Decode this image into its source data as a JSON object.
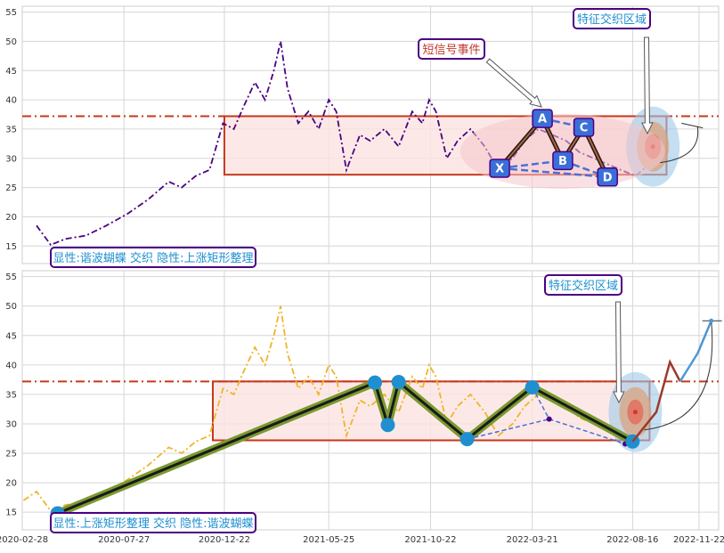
{
  "chart_data": [
    {
      "type": "line",
      "panel": "top",
      "ylim": [
        12,
        56
      ],
      "yticks": [
        15,
        20,
        25,
        30,
        35,
        40,
        45,
        50,
        55
      ],
      "grid": true,
      "series": [
        {
          "style": "dash-dot",
          "color": "#4b0082",
          "x": [
            "2020-03-20",
            "2020-04-10",
            "2020-05-01",
            "2020-06-01",
            "2020-07-01",
            "2020-08-01",
            "2020-09-01",
            "2020-10-01",
            "2020-10-20",
            "2020-11-10",
            "2020-11-30",
            "2020-12-20",
            "2021-01-05",
            "2021-01-20",
            "2021-02-05",
            "2021-02-20",
            "2021-03-05",
            "2021-03-15",
            "2021-03-25",
            "2021-04-10",
            "2021-04-25",
            "2021-05-10",
            "2021-05-25",
            "2021-06-05",
            "2021-06-20",
            "2021-07-10",
            "2021-07-25",
            "2021-08-15",
            "2021-09-05",
            "2021-09-25",
            "2021-10-10",
            "2021-10-20",
            "2021-10-30",
            "2021-11-15",
            "2021-12-01",
            "2021-12-20",
            "2022-01-10",
            "2022-01-30",
            "2022-02-20",
            "2022-03-10",
            "2022-03-30",
            "2022-04-20",
            "2022-05-10",
            "2022-05-30",
            "2022-06-20",
            "2022-07-10",
            "2022-07-30",
            "2022-08-20",
            "2022-09-05"
          ],
          "values": [
            18.5,
            15.2,
            16.2,
            16.8,
            18.5,
            20.5,
            23,
            26,
            25,
            27,
            28,
            36,
            35,
            39,
            43,
            40,
            45,
            50,
            42,
            36,
            38,
            35,
            40,
            38,
            28,
            34,
            33,
            35,
            32,
            38,
            36,
            40,
            38,
            30,
            33,
            35,
            32,
            28,
            30,
            33,
            35,
            34,
            33,
            31,
            30,
            29,
            28,
            27,
            28.5
          ]
        }
      ],
      "reference_lines": [
        {
          "y": 37.2,
          "color": "#c8371a",
          "style": "dash-dot"
        }
      ],
      "rectangles": [
        {
          "x0": "2020-12-22",
          "x1": "2022-10-05",
          "y0": 27.2,
          "y1": 37.2,
          "label": ""
        }
      ],
      "pattern_points": [
        {
          "label": "X",
          "x": "2022-02-01",
          "y": 28.3
        },
        {
          "label": "A",
          "x": "2022-04-05",
          "y": 36.8
        },
        {
          "label": "B",
          "x": "2022-05-05",
          "y": 29.6
        },
        {
          "label": "C",
          "x": "2022-06-05",
          "y": 35.3
        },
        {
          "label": "D",
          "x": "2022-07-10",
          "y": 26.8
        }
      ],
      "annotations": [
        {
          "text": "短信号事件",
          "color": "#c0392b",
          "border": "#4b0082"
        },
        {
          "text": "特征交织区域",
          "color": "#1f8fd0",
          "border": "#4b0082"
        },
        {
          "text": "显性:谐波蝴蝶 交织 隐性:上涨矩形整理",
          "color": "#1f8fd0",
          "border": "#4b0082"
        }
      ],
      "highlight_zone": {
        "x": "2022-09-15",
        "y": 32
      }
    },
    {
      "type": "line",
      "panel": "bottom",
      "ylim": [
        12,
        56
      ],
      "yticks": [
        15,
        20,
        25,
        30,
        35,
        40,
        45,
        50,
        55
      ],
      "xticks": [
        "2020-02-28",
        "2020-07-27",
        "2020-12-22",
        "2021-05-25",
        "2021-10-22",
        "2022-03-21",
        "2022-08-16",
        "2022-11-22"
      ],
      "grid": true,
      "series": [
        {
          "style": "dash-dot",
          "color": "#f0b42a",
          "x": [
            "2020-03-01",
            "2020-03-20",
            "2020-04-10",
            "2020-05-01",
            "2020-06-01",
            "2020-07-01",
            "2020-08-01",
            "2020-09-01",
            "2020-10-01",
            "2020-10-20",
            "2020-11-10",
            "2020-11-30",
            "2020-12-20",
            "2021-01-05",
            "2021-01-20",
            "2021-02-05",
            "2021-02-20",
            "2021-03-05",
            "2021-03-15",
            "2021-03-25",
            "2021-04-10",
            "2021-04-25",
            "2021-05-10",
            "2021-05-25",
            "2021-06-05",
            "2021-06-20",
            "2021-07-10",
            "2021-07-25",
            "2021-08-15",
            "2021-09-05",
            "2021-09-25",
            "2021-10-10",
            "2021-10-20",
            "2021-10-30",
            "2021-11-15",
            "2021-12-01",
            "2021-12-20",
            "2022-01-10",
            "2022-01-30",
            "2022-02-20",
            "2022-03-10",
            "2022-03-30",
            "2022-04-20",
            "2022-05-10",
            "2022-05-30",
            "2022-06-20",
            "2022-07-10",
            "2022-07-30",
            "2022-08-20"
          ],
          "values": [
            17,
            18.5,
            15.2,
            16.2,
            16.8,
            18.5,
            20.5,
            23,
            26,
            25,
            27,
            28,
            36,
            35,
            39,
            43,
            40,
            45,
            50,
            42,
            36,
            38,
            35,
            40,
            38,
            28,
            34,
            33,
            35,
            32,
            38,
            36,
            40,
            38,
            30,
            33,
            35,
            32,
            28,
            30,
            33,
            35,
            34,
            33,
            31,
            30,
            29,
            28,
            27
          ]
        },
        {
          "name": "",
          "style": "solid",
          "color": "#1a1a1a",
          "x": [
            "2020-04-20",
            "2021-08-01",
            "2021-08-20",
            "2021-09-05",
            "2021-12-15",
            "2022-03-21",
            "2022-08-16"
          ],
          "values": [
            14.8,
            37.0,
            29.8,
            37.1,
            27.4,
            36.2,
            27.0
          ]
        }
      ],
      "reference_lines": [
        {
          "y": 37.2,
          "color": "#c8371a",
          "style": "dash-dot"
        }
      ],
      "rectangles": [
        {
          "x0": "2020-12-05",
          "x1": "2022-09-10",
          "y0": 27.2,
          "y1": 37.2,
          "label": ""
        }
      ],
      "projection": {
        "x": [
          "2022-08-16",
          "2022-09-20",
          "2022-10-10",
          "2022-10-25",
          "2022-11-20",
          "2022-12-10"
        ],
        "values": [
          27.0,
          32.0,
          40.5,
          37.2,
          42.0,
          47.5
        ]
      },
      "annotations": [
        {
          "text": "特征交织区域",
          "color": "#1f8fd0",
          "border": "#4b0082"
        },
        {
          "text": "显性:上涨矩形整理 交织 隐性:谐波蝴蝶",
          "color": "#1f8fd0",
          "border": "#4b0082"
        }
      ],
      "highlight_zone": {
        "x": "2022-08-20",
        "y": 32
      }
    }
  ],
  "colors": {
    "grid": "#d6d6d6",
    "rect_edge": "#c8371a",
    "rect_fill": "#fbe3e1",
    "point_fill": "#3a6fd8",
    "node_blue": "#1f8fd0",
    "pattern_green": "#7a9a30"
  }
}
